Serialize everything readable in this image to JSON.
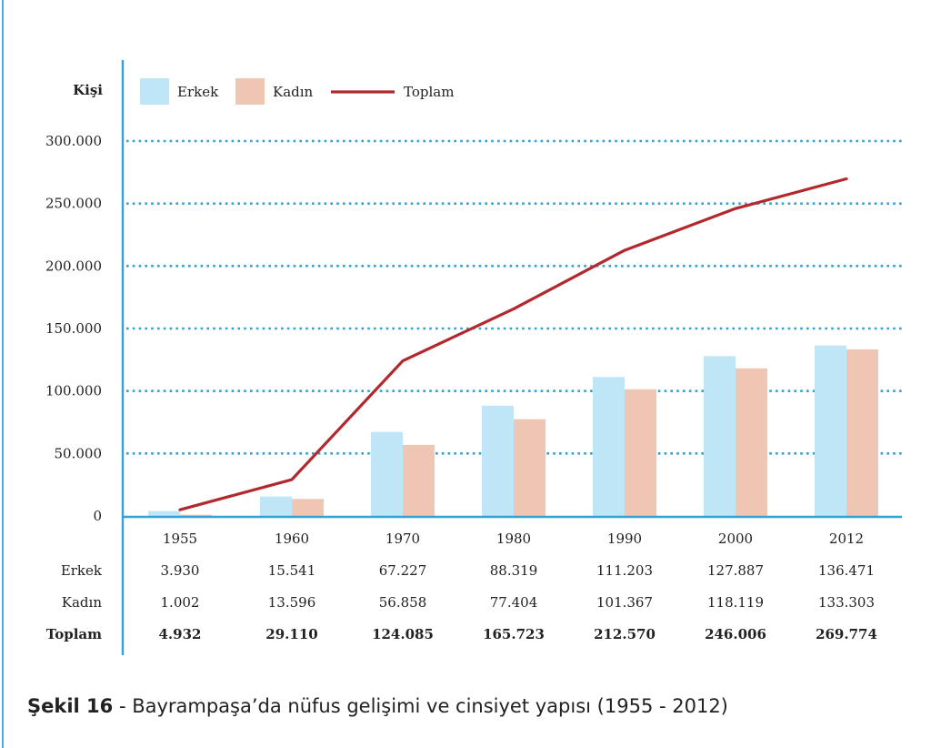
{
  "chart_data": {
    "type": "bar+line",
    "ylabel": "Kişi",
    "ylim": [
      0,
      300000
    ],
    "y_ticks": [
      {
        "value": 0,
        "label": "0"
      },
      {
        "value": 50000,
        "label": "50.000"
      },
      {
        "value": 100000,
        "label": "100.000"
      },
      {
        "value": 150000,
        "label": "150.000"
      },
      {
        "value": 200000,
        "label": "200.000"
      },
      {
        "value": 250000,
        "label": "250.000"
      },
      {
        "value": 300000,
        "label": "300.000"
      }
    ],
    "categories": [
      "1955",
      "1960",
      "1970",
      "1980",
      "1990",
      "2000",
      "2012"
    ],
    "series": [
      {
        "name": "Erkek",
        "kind": "bar",
        "color": "#bfe6f7",
        "values": [
          3930,
          15541,
          67227,
          88319,
          111203,
          127887,
          136471
        ],
        "labels": [
          "3.930",
          "15.541",
          "67.227",
          "88.319",
          "111.203",
          "127.887",
          "136.471"
        ]
      },
      {
        "name": "Kadın",
        "kind": "bar",
        "color": "#efc6b3",
        "values": [
          1002,
          13596,
          56858,
          77404,
          101367,
          118119,
          133303
        ],
        "labels": [
          "1.002",
          "13.596",
          "56.858",
          "77.404",
          "101.367",
          "118.119",
          "133.303"
        ]
      },
      {
        "name": "Toplam",
        "kind": "line",
        "color": "#b3282d",
        "values": [
          4932,
          29110,
          124085,
          165723,
          212570,
          246006,
          269774
        ],
        "labels": [
          "4.932",
          "29.110",
          "124.085",
          "165.723",
          "212.570",
          "246.006",
          "269.774"
        ]
      }
    ],
    "legend": {
      "position": "top-left",
      "items": [
        "Erkek",
        "Kadın",
        "Toplam"
      ]
    },
    "gridline_color": "#2fa3d4",
    "axis_color": "#2fa3d4"
  },
  "caption": {
    "bold": "Şekil 16",
    "text": " - Bayrampaşa’da nüfus gelişimi ve cinsiyet yapısı (1955 - 2012)"
  }
}
